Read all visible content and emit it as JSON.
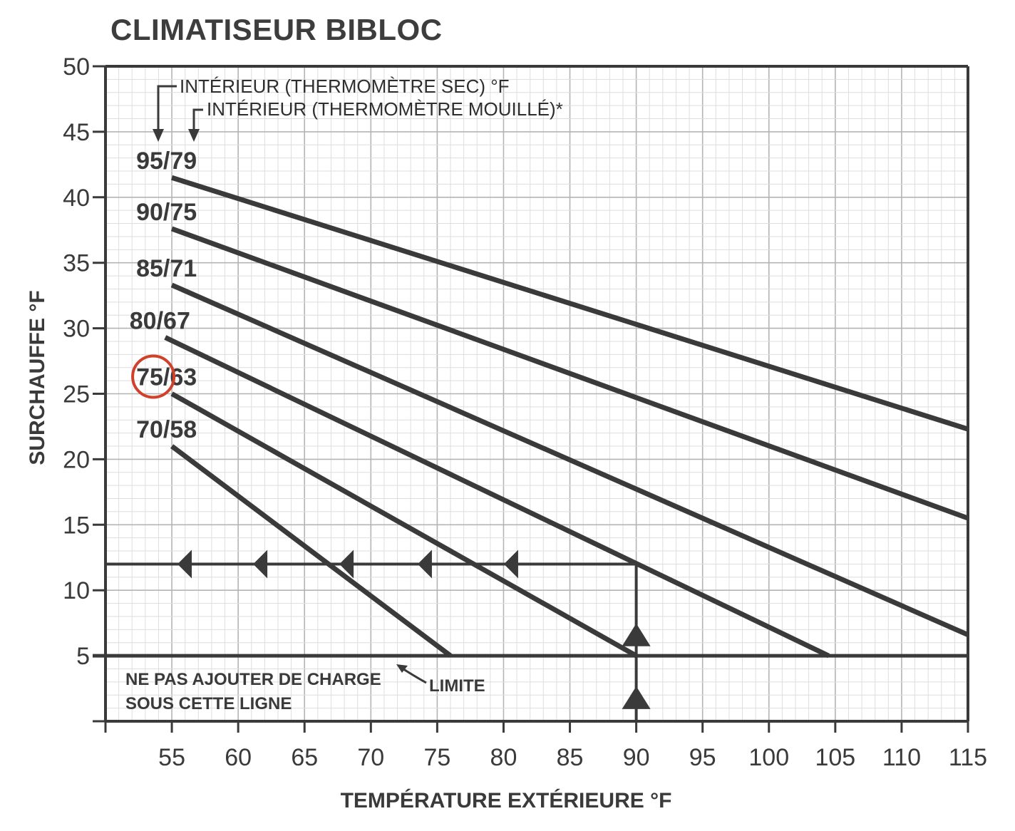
{
  "chart_data": {
    "type": "line",
    "title": "CLIMATISEUR BIBLOC",
    "xlabel": "TEMPÉRATURE EXTÉRIEURE °F",
    "ylabel": "SURCHAUFFE °F",
    "xlim": [
      50,
      115
    ],
    "ylim": [
      0,
      50
    ],
    "x_ticks": [
      "55",
      "60",
      "65",
      "70",
      "75",
      "80",
      "85",
      "90",
      "95",
      "100",
      "105",
      "110",
      "115"
    ],
    "y_ticks": [
      "5",
      "10",
      "15",
      "20",
      "25",
      "30",
      "35",
      "40",
      "45",
      "50"
    ],
    "grid": true,
    "series": [
      {
        "name": "95/79",
        "x": [
          55,
          115
        ],
        "y": [
          41.5,
          22.3
        ]
      },
      {
        "name": "90/75",
        "x": [
          55,
          115
        ],
        "y": [
          37.6,
          15.5
        ]
      },
      {
        "name": "85/71",
        "x": [
          55,
          115
        ],
        "y": [
          33.3,
          6.6
        ]
      },
      {
        "name": "80/67",
        "x": [
          54.5,
          104.5
        ],
        "y": [
          29.3,
          5.0
        ]
      },
      {
        "name": "75/63",
        "x": [
          55,
          90
        ],
        "y": [
          25.0,
          5.0
        ]
      },
      {
        "name": "70/58",
        "x": [
          55,
          76
        ],
        "y": [
          21.0,
          5.0
        ]
      }
    ],
    "highlighted_series": "75/63",
    "highlight_color": "#d0402a",
    "line_color": "#3a3a3a",
    "limit_line": {
      "y": 5,
      "label": "LIMITE",
      "note_line1": "NE PAS AJOUTER DE CHARGE",
      "note_line2": "SOUS CETTE LIGNE"
    },
    "reading_example": {
      "x": 90,
      "y": 12,
      "arrow_x": [
        56.5,
        62.2,
        68.7,
        74.6,
        81.1
      ]
    },
    "annotations": {
      "dry_bulb": "INTÉRIEUR (THERMOMÈTRE SEC)  °F",
      "wet_bulb": "INTÉRIEUR (THERMOMÈTRE MOUILLÉ)*"
    }
  }
}
